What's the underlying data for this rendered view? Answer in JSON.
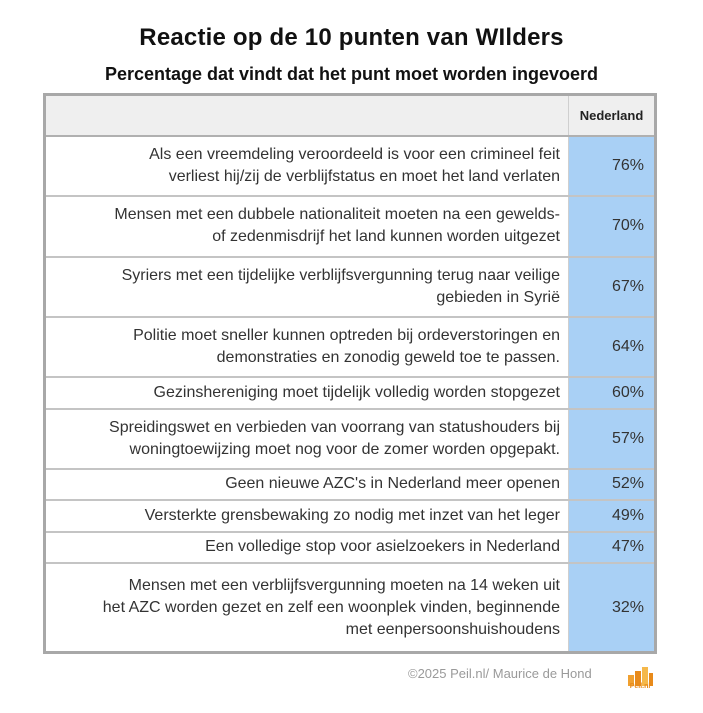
{
  "chart_data": {
    "type": "table",
    "title": "Reactie op de 10 punten van WIlders",
    "subtitle": "Percentage dat vindt dat het punt moet worden ingevoerd",
    "column_header": "Nederland",
    "rows": [
      {
        "label_lines": [
          "Als een vreemdeling veroordeeld is voor een crimineel feit",
          "verliest hij/zij de verblijfstatus en moet het land verlaten"
        ],
        "value": "76%"
      },
      {
        "label_lines": [
          "Mensen met een dubbele nationaliteit moeten na een gewelds-",
          "of zedenmisdrijf het land kunnen worden uitgezet"
        ],
        "value": "70%"
      },
      {
        "label_lines": [
          "Syriers met een tijdelijke verblijfsvergunning terug naar veilige",
          "gebieden in Syrië"
        ],
        "value": "67%"
      },
      {
        "label_lines": [
          "Politie moet sneller kunnen optreden bij ordeverstoringen en",
          "demonstraties en zonodig geweld toe te passen."
        ],
        "value": "64%"
      },
      {
        "label_lines": [
          "Gezinshereniging moet tijdelijk volledig worden stopgezet"
        ],
        "value": "60%"
      },
      {
        "label_lines": [
          "Spreidingswet en verbieden van voorrang van statushouders bij",
          "woningtoewijzing moet nog voor de zomer worden opgepakt."
        ],
        "value": "57%"
      },
      {
        "label_lines": [
          "Geen nieuwe AZC's in Nederland meer openen"
        ],
        "value": "52%"
      },
      {
        "label_lines": [
          "Versterkte grensbewaking zo nodig met inzet van het leger"
        ],
        "value": "49%"
      },
      {
        "label_lines": [
          "Een volledige stop voor asielzoekers in Nederland"
        ],
        "value": "47%"
      },
      {
        "label_lines": [
          "Mensen met een verblijfsvergunning moeten na 14 weken uit",
          "het AZC worden gezet en zelf een woonplek vinden, beginnende",
          "met eenpersoonshuishoudens"
        ],
        "value": "32%"
      }
    ]
  },
  "colors": {
    "value_cell": "#a9d0f5",
    "header_bg": "#efefef",
    "border": "#a8a8a8",
    "logo": "#f0a030"
  },
  "footer": {
    "credit": "©2025 Peil.nl/ Maurice de Hond",
    "logo_text": "Peil.nl",
    "logo_icon": "bar-chart-logo-icon"
  }
}
